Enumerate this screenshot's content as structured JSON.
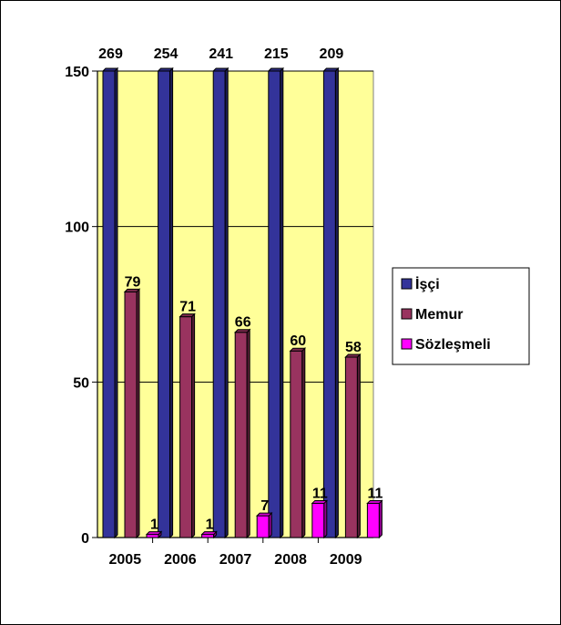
{
  "chart_data": {
    "type": "bar",
    "categories": [
      "2005",
      "2006",
      "2007",
      "2008",
      "2009"
    ],
    "series": [
      {
        "name": "İşçi",
        "values": [
          269,
          254,
          241,
          215,
          209
        ],
        "color": "#33339a"
      },
      {
        "name": "Memur",
        "values": [
          79,
          71,
          66,
          60,
          58
        ],
        "color": "#99335f"
      },
      {
        "name": "Sözleşmeli",
        "values": [
          1,
          1,
          7,
          11,
          11
        ],
        "color": "#ff00ff"
      }
    ],
    "y_ticks": [
      "0",
      "50",
      "100",
      "150"
    ],
    "ylim": [
      0,
      150
    ],
    "title": "",
    "xlabel": "",
    "ylabel": "",
    "grid": true,
    "legend_position": "right",
    "plot_background": "#ffff99",
    "note": ""
  }
}
